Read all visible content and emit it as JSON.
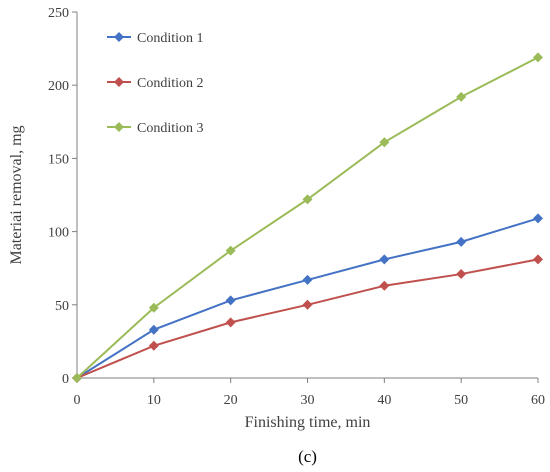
{
  "chart_data": {
    "type": "line",
    "xlabel": "Finishing time, min",
    "ylabel": "Materiai removal, mg",
    "caption": "(c)",
    "x": [
      0,
      10,
      20,
      30,
      40,
      50,
      60
    ],
    "xlim": [
      0,
      60
    ],
    "ylim": [
      0,
      250
    ],
    "xticks": [
      0,
      10,
      20,
      30,
      40,
      50,
      60
    ],
    "yticks": [
      0,
      50,
      100,
      150,
      200,
      250
    ],
    "grid": false,
    "legend_position": "top-left",
    "marker": "diamond",
    "series": [
      {
        "name": "Condition 1",
        "color": "#4472c4",
        "values": [
          0,
          33,
          53,
          67,
          81,
          93,
          109
        ]
      },
      {
        "name": "Condition 2",
        "color": "#c0504d",
        "values": [
          0,
          22,
          38,
          50,
          63,
          71,
          81
        ]
      },
      {
        "name": "Condition 3",
        "color": "#9bbb59",
        "values": [
          0,
          48,
          87,
          122,
          161,
          192,
          219
        ]
      }
    ]
  }
}
